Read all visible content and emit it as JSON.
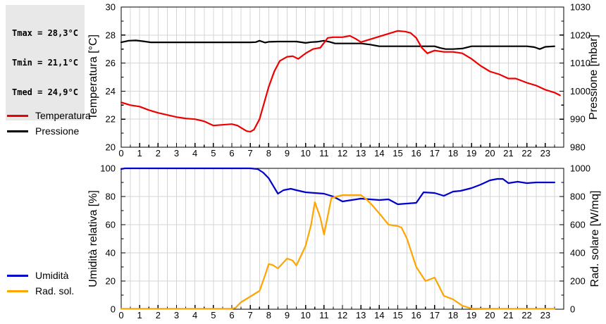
{
  "stats_box": {
    "tmax_label": "Tmax = 28,3°C",
    "tmin_label": "Tmin = 21,1°C",
    "tmed_label": "Tmed = 24,9°C"
  },
  "colors": {
    "temperature": "#ee0000",
    "pressure": "#000000",
    "humidity": "#0000cc",
    "solar": "#ffa500",
    "grid": "#d4d4d4",
    "axis": "#000000",
    "stats_background": "#e8e8e8"
  },
  "chart_data": [
    {
      "type": "line",
      "x_axis": {
        "min": 0,
        "max": 24,
        "minor_step": 0.5,
        "labels": [
          "0",
          "1",
          "2",
          "3",
          "4",
          "5",
          "6",
          "7",
          "8",
          "9",
          "10",
          "11",
          "12",
          "13",
          "14",
          "15",
          "16",
          "17",
          "18",
          "19",
          "20",
          "21",
          "22",
          "23"
        ]
      },
      "left_axis": {
        "label": "Temperatura [°C]",
        "min": 20,
        "max": 30,
        "ticks": [
          20,
          22,
          24,
          26,
          28,
          30
        ],
        "minor_step": 1
      },
      "right_axis": {
        "label": "Pressione [mbar]",
        "min": 980,
        "max": 1030,
        "ticks": [
          980,
          990,
          1000,
          1010,
          1020,
          1030
        ],
        "minor_step": 5
      },
      "grid": true,
      "series": [
        {
          "name": "Pressione",
          "axis": "right",
          "color": "#000000",
          "data_name": "pressione-line",
          "x": [
            0,
            0.4,
            0.8,
            1.2,
            1.6,
            2,
            3,
            4,
            5,
            6,
            7,
            7.3,
            7.5,
            7.8,
            8,
            8.5,
            9,
            9.5,
            10,
            10.3,
            10.6,
            11,
            11.3,
            11.6,
            12,
            13,
            13.5,
            14,
            15,
            16,
            17,
            17.3,
            17.6,
            18,
            18.5,
            19,
            20,
            21,
            22,
            22.4,
            22.7,
            23,
            23.5
          ],
          "y": [
            1017.4,
            1018.0,
            1018.1,
            1017.8,
            1017.4,
            1017.4,
            1017.4,
            1017.4,
            1017.4,
            1017.4,
            1017.4,
            1017.5,
            1018.0,
            1017.3,
            1017.6,
            1017.7,
            1017.7,
            1017.7,
            1017.2,
            1017.5,
            1017.6,
            1018.0,
            1017.6,
            1017.0,
            1017.0,
            1017.0,
            1016.6,
            1016.0,
            1016.0,
            1016.0,
            1016.0,
            1015.4,
            1015.0,
            1015.0,
            1015.2,
            1016.0,
            1016.0,
            1016.0,
            1016.0,
            1015.7,
            1015.0,
            1015.8,
            1016.0
          ]
        },
        {
          "name": "Temperatura",
          "axis": "left",
          "color": "#ee0000",
          "data_name": "temperatura-line",
          "x": [
            0,
            0.5,
            1,
            1.5,
            2,
            2.5,
            3,
            3.5,
            4,
            4.5,
            5,
            5.5,
            6,
            6.3,
            6.8,
            7,
            7.2,
            7.5,
            8,
            8.3,
            8.6,
            9,
            9.3,
            9.6,
            10,
            10.4,
            10.8,
            11.2,
            11.5,
            12,
            12.4,
            12.7,
            13,
            13.5,
            14,
            14.5,
            15,
            15.4,
            15.7,
            16,
            16.3,
            16.6,
            17,
            17.5,
            18,
            18.5,
            19,
            19.5,
            20,
            20.5,
            21,
            21.4,
            22,
            22.5,
            23,
            23.5,
            23.8
          ],
          "y": [
            23.2,
            23.0,
            22.9,
            22.65,
            22.45,
            22.3,
            22.15,
            22.05,
            22.0,
            21.85,
            21.55,
            21.6,
            21.65,
            21.55,
            21.15,
            21.1,
            21.25,
            22.0,
            24.3,
            25.4,
            26.15,
            26.45,
            26.5,
            26.3,
            26.7,
            27.0,
            27.1,
            27.8,
            27.85,
            27.85,
            27.95,
            27.75,
            27.5,
            27.7,
            27.9,
            28.1,
            28.3,
            28.25,
            28.15,
            27.8,
            27.1,
            26.7,
            26.9,
            26.8,
            26.8,
            26.7,
            26.3,
            25.8,
            25.4,
            25.2,
            24.9,
            24.9,
            24.6,
            24.4,
            24.1,
            23.9,
            23.7
          ]
        }
      ]
    },
    {
      "type": "line",
      "x_axis": {
        "min": 0,
        "max": 24,
        "minor_step": 0.5,
        "labels": [
          "0",
          "1",
          "2",
          "3",
          "4",
          "5",
          "6",
          "7",
          "8",
          "9",
          "10",
          "11",
          "12",
          "13",
          "14",
          "15",
          "16",
          "17",
          "18",
          "19",
          "20",
          "21",
          "22",
          "23"
        ]
      },
      "left_axis": {
        "label": "Umidità relativa [%]",
        "min": 0,
        "max": 100,
        "ticks": [
          0,
          20,
          40,
          60,
          80,
          100
        ],
        "minor_step": 10
      },
      "right_axis": {
        "label": "Rad. solare [W/mq]",
        "min": 0,
        "max": 1000,
        "ticks": [
          0,
          200,
          400,
          600,
          800,
          1000
        ],
        "minor_step": 100
      },
      "grid": true,
      "series": [
        {
          "name": "Umidità",
          "axis": "left",
          "color": "#0000cc",
          "data_name": "umidita-line",
          "x": [
            0,
            0.2,
            1,
            2,
            3,
            4,
            5,
            6,
            7,
            7.4,
            7.7,
            8,
            8.5,
            8.8,
            9.2,
            9.5,
            10,
            10.5,
            11,
            11.5,
            12,
            12.5,
            13,
            13.5,
            14,
            14.5,
            15,
            15.5,
            16,
            16.4,
            17,
            17.5,
            18,
            18.4,
            19,
            19.5,
            20,
            20.4,
            20.7,
            21,
            21.5,
            22,
            22.5,
            23,
            23.5
          ],
          "y": [
            99.5,
            100,
            100,
            100,
            100,
            100,
            100,
            100,
            100,
            99.5,
            97,
            93,
            82,
            84.5,
            85.5,
            84.5,
            83,
            82.5,
            82,
            80,
            76.5,
            77.5,
            78.5,
            78,
            77.5,
            78,
            74.5,
            75,
            75.5,
            83,
            82.5,
            80.5,
            83.5,
            84,
            86,
            88.5,
            91.5,
            92.5,
            92.5,
            89.5,
            90.5,
            89.5,
            90,
            90,
            90
          ]
        },
        {
          "name": "Rad. sol.",
          "axis": "right",
          "color": "#ffa500",
          "data_name": "rad-solare-line",
          "x": [
            0,
            1,
            2,
            3,
            4,
            5,
            6,
            6.2,
            6.5,
            7,
            7.5,
            7.8,
            8,
            8.2,
            8.5,
            9,
            9.3,
            9.5,
            10,
            10.3,
            10.5,
            10.8,
            11,
            11.4,
            12,
            12.5,
            13,
            13.3,
            13.6,
            14,
            14.5,
            15,
            15.2,
            15.5,
            16,
            16.5,
            17,
            17.5,
            18,
            18.5,
            19,
            20,
            21,
            22,
            23,
            23.5
          ],
          "y": [
            3,
            3,
            3,
            3,
            3,
            3,
            3,
            10,
            50,
            90,
            130,
            240,
            320,
            315,
            290,
            360,
            345,
            310,
            450,
            600,
            760,
            650,
            530,
            790,
            810,
            810,
            810,
            780,
            740,
            680,
            600,
            590,
            580,
            500,
            300,
            200,
            225,
            95,
            70,
            25,
            5,
            3,
            3,
            3,
            3,
            3
          ]
        }
      ]
    }
  ]
}
